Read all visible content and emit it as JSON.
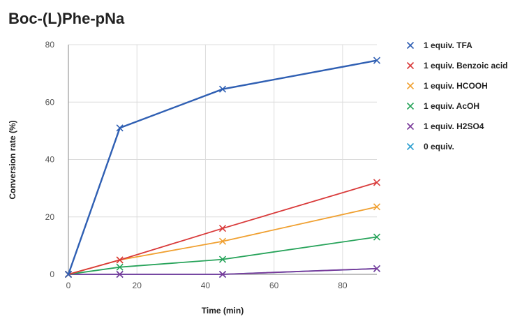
{
  "chart_data": {
    "type": "line",
    "title": "Boc-(L)Phe-pNa",
    "xlabel": "Time (min)",
    "ylabel": "Conversion rate (%)",
    "xlim": [
      0,
      90
    ],
    "ylim": [
      0,
      80
    ],
    "xticks": [
      0,
      20,
      40,
      60,
      80
    ],
    "yticks": [
      0,
      20,
      40,
      60,
      80
    ],
    "grid": true,
    "legend_position": "right",
    "x": [
      0,
      15,
      45,
      90
    ],
    "series": [
      {
        "name": "1 equiv. TFA",
        "color": "#2f5fb3",
        "values": [
          0,
          51,
          64.5,
          74.5
        ]
      },
      {
        "name": "1 equiv. Benzoic acid",
        "color": "#d93a3a",
        "values": [
          0,
          5,
          16,
          32
        ]
      },
      {
        "name": "1 equiv. HCOOH",
        "color": "#f0a030",
        "values": [
          0,
          5,
          11.5,
          23.5
        ]
      },
      {
        "name": "1 equiv. AcOH",
        "color": "#27a35a",
        "values": [
          0,
          2.5,
          5.2,
          13
        ]
      },
      {
        "name": "1 equiv. H2SO4",
        "color": "#7a3a9a",
        "values": [
          0,
          0,
          0,
          2
        ]
      },
      {
        "name": "0 equiv.",
        "color": "#2b9fd0",
        "values": [
          0,
          0,
          0,
          2
        ]
      }
    ]
  }
}
